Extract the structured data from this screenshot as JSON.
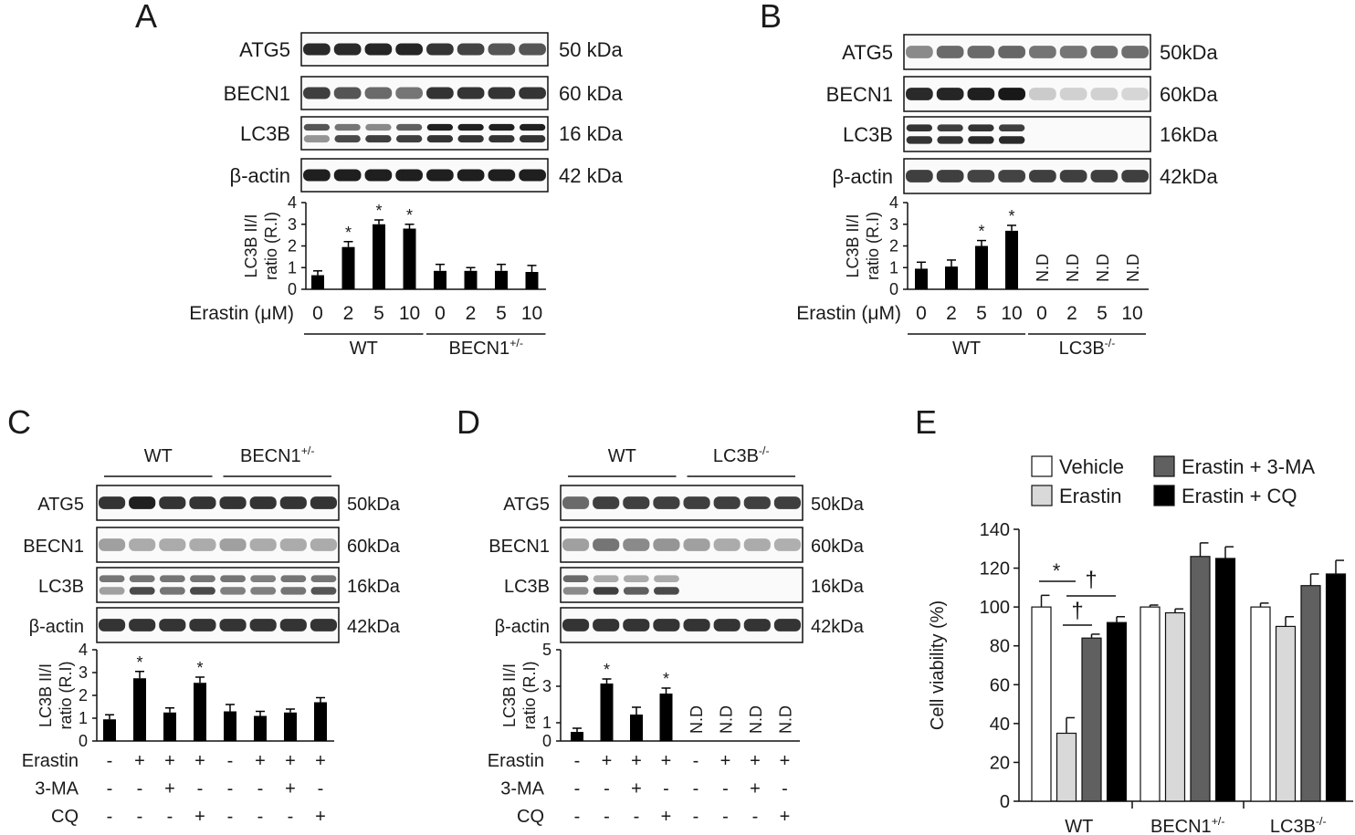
{
  "figure": {
    "panels": [
      {
        "letter": "A",
        "blot": {
          "rows": [
            {
              "protein": "ATG5",
              "size": "50 kDa",
              "kind": "single",
              "levels": [
                0.9,
                0.9,
                0.92,
                0.92,
                0.85,
                0.78,
                0.7,
                0.7
              ]
            },
            {
              "protein": "BECN1",
              "size": "60 kDa",
              "kind": "single",
              "levels": [
                0.8,
                0.7,
                0.6,
                0.55,
                0.85,
                0.85,
                0.85,
                0.85
              ]
            },
            {
              "protein": "LC3B",
              "size": "16 kDa",
              "kind": "double",
              "levels": [
                0.7,
                0.55,
                0.45,
                0.65,
                0.95,
                0.95,
                0.95,
                0.95
              ],
              "lower": [
                0.4,
                0.75,
                0.8,
                0.8,
                0.85,
                0.85,
                0.85,
                0.85
              ]
            },
            {
              "protein": "β-actin",
              "size": "42 kDa",
              "kind": "single",
              "levels": [
                0.95,
                0.95,
                0.95,
                0.95,
                0.95,
                0.95,
                0.95,
                0.95
              ]
            }
          ]
        },
        "chart_data": {
          "type": "bar",
          "ylabel": "LC3B II/I ratio (R.I)",
          "ylim": [
            0,
            4
          ],
          "yticks": [
            "0",
            "1",
            "2",
            "3",
            "4"
          ],
          "values": [
            0.65,
            1.95,
            3.0,
            2.8,
            0.85,
            0.85,
            0.85,
            0.8
          ],
          "errors": [
            0.2,
            0.25,
            0.2,
            0.2,
            0.3,
            0.15,
            0.3,
            0.3
          ],
          "marks": [
            "",
            "*",
            "*",
            "*",
            "",
            "",
            "",
            ""
          ],
          "treatment_label": "Erastin (μM)",
          "categories": [
            "0",
            "2",
            "5",
            "10",
            "0",
            "2",
            "5",
            "10"
          ],
          "groups": [
            {
              "name": "WT",
              "sup": ""
            },
            {
              "name": "BECN1",
              "sup": "+/-"
            }
          ]
        }
      },
      {
        "letter": "B",
        "blot": {
          "rows": [
            {
              "protein": "ATG5",
              "size": "50kDa",
              "kind": "single",
              "levels": [
                0.45,
                0.6,
                0.6,
                0.62,
                0.55,
                0.55,
                0.58,
                0.58
              ]
            },
            {
              "protein": "BECN1",
              "size": "60kDa",
              "kind": "single",
              "levels": [
                0.9,
                0.92,
                0.95,
                0.98,
                0.15,
                0.12,
                0.12,
                0.1
              ]
            },
            {
              "protein": "LC3B",
              "size": "16kDa",
              "kind": "double",
              "levels": [
                0.85,
                0.8,
                0.85,
                0.8,
                0,
                0,
                0,
                0
              ],
              "lower": [
                0.85,
                0.85,
                0.9,
                0.9,
                0,
                0,
                0,
                0
              ]
            },
            {
              "protein": "β-actin",
              "size": "42kDa",
              "kind": "single",
              "levels": [
                0.8,
                0.8,
                0.78,
                0.78,
                0.8,
                0.8,
                0.8,
                0.8
              ]
            }
          ]
        },
        "chart_data": {
          "type": "bar",
          "ylabel": "LC3B II/I ratio (R.I)",
          "ylim": [
            0,
            4
          ],
          "yticks": [
            "0",
            "1",
            "2",
            "3",
            "4"
          ],
          "values": [
            0.95,
            1.05,
            2.0,
            2.7,
            null,
            null,
            null,
            null
          ],
          "errors": [
            0.3,
            0.3,
            0.25,
            0.25,
            0,
            0,
            0,
            0
          ],
          "marks": [
            "",
            "",
            "*",
            "*",
            "N.D",
            "N.D",
            "N.D",
            "N.D"
          ],
          "treatment_label": "Erastin (μM)",
          "categories": [
            "0",
            "2",
            "5",
            "10",
            "0",
            "2",
            "5",
            "10"
          ],
          "groups": [
            {
              "name": "WT",
              "sup": ""
            },
            {
              "name": "LC3B",
              "sup": "-/-"
            }
          ]
        }
      },
      {
        "letter": "C",
        "blot": {
          "rows": [
            {
              "protein": "ATG5",
              "size": "50kDa",
              "kind": "single",
              "levels": [
                0.85,
                0.95,
                0.85,
                0.85,
                0.85,
                0.85,
                0.85,
                0.85
              ]
            },
            {
              "protein": "BECN1",
              "size": "60kDa",
              "kind": "single",
              "levels": [
                0.35,
                0.3,
                0.3,
                0.3,
                0.35,
                0.3,
                0.3,
                0.3
              ]
            },
            {
              "protein": "LC3B",
              "size": "16kDa",
              "kind": "double",
              "levels": [
                0.55,
                0.55,
                0.55,
                0.55,
                0.55,
                0.5,
                0.55,
                0.55
              ],
              "lower": [
                0.35,
                0.75,
                0.55,
                0.75,
                0.5,
                0.5,
                0.55,
                0.7
              ]
            },
            {
              "protein": "β-actin",
              "size": "42kDa",
              "kind": "single",
              "levels": [
                0.85,
                0.85,
                0.85,
                0.85,
                0.85,
                0.85,
                0.85,
                0.85
              ]
            }
          ]
        },
        "chart_data": {
          "type": "bar",
          "ylabel": "LC3B II/I ratio (R.I)",
          "ylim": [
            0,
            4
          ],
          "yticks": [
            "0",
            "1",
            "2",
            "3",
            "4"
          ],
          "values": [
            0.95,
            2.75,
            1.25,
            2.55,
            1.3,
            1.1,
            1.25,
            1.7
          ],
          "errors": [
            0.2,
            0.3,
            0.2,
            0.25,
            0.3,
            0.2,
            0.15,
            0.2
          ],
          "marks": [
            "",
            "*",
            "",
            "*",
            "",
            "",
            "",
            ""
          ],
          "treatments": [
            {
              "name": "Erastin",
              "signs": [
                "-",
                "+",
                "+",
                "+",
                "-",
                "+",
                "+",
                "+"
              ]
            },
            {
              "name": "3-MA",
              "signs": [
                "-",
                "-",
                "+",
                "-",
                "-",
                "-",
                "+",
                "-"
              ]
            },
            {
              "name": "CQ",
              "signs": [
                "-",
                "-",
                "-",
                "+",
                "-",
                "-",
                "-",
                "+"
              ]
            }
          ],
          "groups": [
            {
              "name": "WT",
              "sup": ""
            },
            {
              "name": "BECN1",
              "sup": "+/-"
            }
          ]
        }
      },
      {
        "letter": "D",
        "blot": {
          "rows": [
            {
              "protein": "ATG5",
              "size": "50kDa",
              "kind": "single",
              "levels": [
                0.6,
                0.8,
                0.8,
                0.8,
                0.8,
                0.8,
                0.8,
                0.8
              ]
            },
            {
              "protein": "BECN1",
              "size": "60kDa",
              "kind": "single",
              "levels": [
                0.35,
                0.55,
                0.45,
                0.4,
                0.35,
                0.3,
                0.3,
                0.28
              ]
            },
            {
              "protein": "LC3B",
              "size": "16kDa",
              "kind": "double",
              "levels": [
                0.6,
                0.3,
                0.3,
                0.3,
                0,
                0,
                0,
                0
              ],
              "lower": [
                0.45,
                0.8,
                0.65,
                0.75,
                0,
                0,
                0,
                0
              ]
            },
            {
              "protein": "β-actin",
              "size": "42kDa",
              "kind": "single",
              "levels": [
                0.85,
                0.85,
                0.85,
                0.85,
                0.85,
                0.85,
                0.85,
                0.85
              ]
            }
          ]
        },
        "chart_data": {
          "type": "bar",
          "ylabel": "LC3B II/I ratio (R.I)",
          "ylim": [
            0,
            5
          ],
          "yticks": [
            "0",
            "1",
            "3",
            "5"
          ],
          "ytick_values": [
            0,
            1,
            3,
            5
          ],
          "values": [
            0.5,
            3.15,
            1.45,
            2.6,
            null,
            null,
            null,
            null
          ],
          "errors": [
            0.2,
            0.25,
            0.4,
            0.3,
            0,
            0,
            0,
            0
          ],
          "marks": [
            "",
            "*",
            "",
            "*",
            "N.D",
            "N.D",
            "N.D",
            "N.D"
          ],
          "treatments": [
            {
              "name": "Erastin",
              "signs": [
                "-",
                "+",
                "+",
                "+",
                "-",
                "+",
                "+",
                "+"
              ]
            },
            {
              "name": "3-MA",
              "signs": [
                "-",
                "-",
                "+",
                "-",
                "-",
                "-",
                "+",
                "-"
              ]
            },
            {
              "name": "CQ",
              "signs": [
                "-",
                "-",
                "-",
                "+",
                "-",
                "-",
                "-",
                "+"
              ]
            }
          ],
          "groups": [
            {
              "name": "WT",
              "sup": ""
            },
            {
              "name": "LC3B",
              "sup": "-/-"
            }
          ]
        }
      }
    ],
    "panelE": {
      "letter": "E",
      "chart_data": {
        "type": "bar",
        "ylabel": "Cell viability (%)",
        "ylim": [
          0,
          140
        ],
        "yticks": [
          "0",
          "20",
          "40",
          "60",
          "80",
          "100",
          "120",
          "140"
        ],
        "categories": [
          {
            "name": "WT",
            "sup": ""
          },
          {
            "name": "BECN1",
            "sup": "+/-"
          },
          {
            "name": "LC3B",
            "sup": "-/-"
          }
        ],
        "series": [
          {
            "name": "Vehicle",
            "color": "#ffffff",
            "values": [
              100,
              100,
              100
            ],
            "errors": [
              6,
              1,
              2
            ]
          },
          {
            "name": "Erastin",
            "color": "#d9d9d9",
            "values": [
              35,
              97,
              90
            ],
            "errors": [
              8,
              2,
              5
            ]
          },
          {
            "name": "Erastin + 3-MA",
            "color": "#606060",
            "values": [
              84,
              126,
              111
            ],
            "errors": [
              2,
              7,
              6
            ]
          },
          {
            "name": "Erastin + CQ",
            "color": "#000000",
            "values": [
              92,
              125,
              117
            ],
            "errors": [
              3,
              6,
              7
            ]
          }
        ],
        "annotations": [
          "*",
          "†",
          "†"
        ]
      }
    }
  }
}
